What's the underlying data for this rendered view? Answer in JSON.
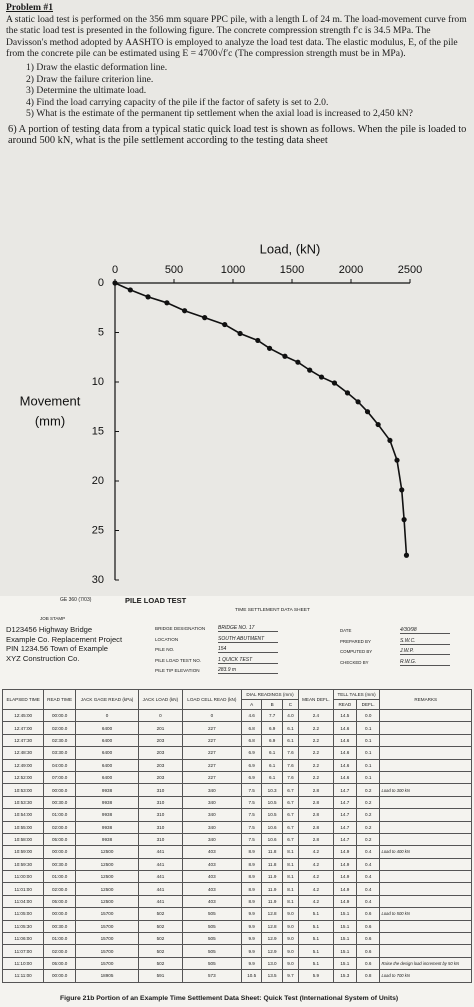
{
  "problem": {
    "title": "Problem #1",
    "body": "A static load test is performed on the 356 mm square PPC pile, with a length L of 24 m. The load-movement curve from the static load test is presented in the following figure. The concrete compression strength f′c is 34.5 MPa. The Davisson's method adopted by AASHTO is employed to analyze the load test data. The elastic modulus, E, of the pile from the concrete pile can be estimated using E = 4700√f′c (The compression strength must be in MPa).",
    "items": [
      "1) Draw the elastic deformation line.",
      "2) Draw the failure criterion line.",
      "3) Determine the ultimate load.",
      "4) Find the load carrying capacity of the pile if the factor of safety is set to 2.0.",
      "5) What is the estimate of the permanent tip settlement when the axial load is increased to 2,450 kN?"
    ],
    "question6": "6) A portion of testing data from a typical static quick load test is shown as follows. When the pile is loaded to around 500 kN, what is the pile settlement according to the testing data sheet"
  },
  "chart_data": {
    "type": "line",
    "title": "Load, (kN)",
    "y_label": [
      "Movement",
      "(mm)"
    ],
    "x": [
      0,
      130,
      280,
      440,
      590,
      760,
      930,
      1060,
      1210,
      1310,
      1440,
      1550,
      1650,
      1750,
      1860,
      1970,
      2060,
      2140,
      2230,
      2330,
      2390,
      2430,
      2450,
      2470
    ],
    "values": [
      0,
      0.7,
      1.4,
      2.0,
      2.8,
      3.5,
      4.2,
      5.1,
      5.8,
      6.6,
      7.4,
      8.0,
      8.8,
      9.5,
      10.1,
      11.1,
      12.0,
      13.0,
      14.3,
      15.9,
      17.9,
      20.9,
      23.9,
      27.5
    ],
    "color": "#111111",
    "x_axis_position": "top",
    "xlim": [
      0,
      2500
    ],
    "xticks": [
      0,
      500,
      1000,
      1500,
      2000,
      2500
    ],
    "ylim": [
      30,
      0
    ],
    "yticks": [
      0,
      5,
      10,
      15,
      20,
      25,
      30
    ]
  },
  "datasheet": {
    "form": "GE 360 (7/03)",
    "title": "PILE LOAD TEST",
    "subtitle": "TIME SETTLEMENT DATA SHEET",
    "job_stamp": "JOB STAMP",
    "stamp": [
      "D123456   Highway Bridge",
      "Example Co. Replacement Project",
      "PIN 1234.56 Town of Example",
      "XYZ Construction Co."
    ],
    "fields": [
      [
        "BRIDGE DESIGNATION",
        "BRIDGE NO. 17"
      ],
      [
        "LOCATION",
        "SOUTH ABUTMENT"
      ],
      [
        "PILE NO.",
        "154"
      ],
      [
        "PILE LOAD TEST NO.",
        "1  QUICK TEST"
      ],
      [
        "PILE TIP ELEVATION",
        "283.9 m"
      ]
    ],
    "signoff": [
      [
        "DATE",
        "4/30/98"
      ],
      [
        "PREPARED BY",
        "S.W.C."
      ],
      [
        "COMPUTED BY",
        "J.W.P."
      ],
      [
        "CHECKED BY",
        "R.W.G."
      ]
    ],
    "header": [
      "ELAPSED TIME",
      "READ TIME",
      "JACK GAGE READ (kPa)",
      "JACK LOAD (kN)",
      "LOAD CELL READ (kN)",
      "DIAL READINGS (mm)",
      "MEAN DEFL.",
      "TELL TALES (mm)",
      "REMARKS"
    ],
    "subheader": [
      "A",
      "B",
      "C",
      "READ",
      "DEFL."
    ],
    "rows": [
      [
        "12:45:00",
        "00:00.0",
        "0",
        "0",
        "0",
        "4.6",
        "7.7",
        "4.0",
        "2.4",
        "14.5",
        "0.0",
        ""
      ],
      [
        "12:47:00",
        "02:00.0",
        "6400",
        "201",
        "227",
        "6.8",
        "6.9",
        "6.1",
        "2.2",
        "14.6",
        "0.1",
        ""
      ],
      [
        "12:47:30",
        "02:30.0",
        "6400",
        "203",
        "227",
        "6.8",
        "6.9",
        "6.1",
        "2.2",
        "14.6",
        "0.1",
        ""
      ],
      [
        "12:48:30",
        "03:30.0",
        "6400",
        "203",
        "227",
        "6.9",
        "6.1",
        "7.6",
        "2.2",
        "14.6",
        "0.1",
        ""
      ],
      [
        "12:49:00",
        "04:00.0",
        "6400",
        "203",
        "227",
        "6.9",
        "6.1",
        "7.6",
        "2.2",
        "14.6",
        "0.1",
        ""
      ],
      [
        "12:52:00",
        "07:00.0",
        "6400",
        "203",
        "227",
        "6.9",
        "6.1",
        "7.6",
        "2.2",
        "14.6",
        "0.1",
        ""
      ],
      [
        "10:53:00",
        "00:00.0",
        "9938",
        "310",
        "340",
        "7.5",
        "10.3",
        "6.7",
        "2.8",
        "14.7",
        "0.2",
        "Load to 300 kN"
      ],
      [
        "10:53:30",
        "00:30.0",
        "9938",
        "310",
        "340",
        "7.5",
        "10.5",
        "6.7",
        "2.8",
        "14.7",
        "0.2",
        ""
      ],
      [
        "10:54:00",
        "01:00.0",
        "9938",
        "310",
        "340",
        "7.5",
        "10.5",
        "6.7",
        "2.8",
        "14.7",
        "0.2",
        ""
      ],
      [
        "10:55:00",
        "02:00.0",
        "9938",
        "310",
        "340",
        "7.5",
        "10.6",
        "6.7",
        "2.8",
        "14.7",
        "0.2",
        ""
      ],
      [
        "10:58:00",
        "05:00.0",
        "9938",
        "310",
        "340",
        "7.5",
        "10.6",
        "6.7",
        "2.8",
        "14.7",
        "0.2",
        ""
      ],
      [
        "10:59:00",
        "00:00.0",
        "12500",
        "441",
        "403",
        "8.9",
        "11.8",
        "8.1",
        "4.2",
        "14.9",
        "0.4",
        "Load to 400 kN"
      ],
      [
        "10:59:30",
        "00:30.0",
        "12500",
        "441",
        "403",
        "8.9",
        "11.8",
        "8.1",
        "4.2",
        "14.9",
        "0.4",
        ""
      ],
      [
        "11:00:00",
        "01:00.0",
        "12500",
        "441",
        "403",
        "8.9",
        "11.9",
        "8.1",
        "4.2",
        "14.9",
        "0.4",
        ""
      ],
      [
        "11:01:00",
        "02:00.0",
        "12500",
        "441",
        "403",
        "8.9",
        "11.9",
        "8.1",
        "4.2",
        "14.9",
        "0.4",
        ""
      ],
      [
        "11:04:00",
        "05:00.0",
        "12500",
        "441",
        "403",
        "8.9",
        "11.9",
        "8.1",
        "4.2",
        "14.9",
        "0.4",
        ""
      ],
      [
        "11:05:00",
        "00:00.0",
        "15700",
        "502",
        "505",
        "9.9",
        "12.8",
        "9.0",
        "5.1",
        "15.1",
        "0.6",
        "Load to 500 kN"
      ],
      [
        "11:05:30",
        "00:30.0",
        "15700",
        "502",
        "505",
        "9.9",
        "12.8",
        "9.0",
        "5.1",
        "15.1",
        "0.6",
        ""
      ],
      [
        "11:06:00",
        "01:00.0",
        "15700",
        "502",
        "505",
        "9.9",
        "12.9",
        "9.0",
        "5.1",
        "15.1",
        "0.6",
        ""
      ],
      [
        "11:07:00",
        "02:00.0",
        "15700",
        "502",
        "505",
        "9.9",
        "12.9",
        "9.0",
        "5.1",
        "15.1",
        "0.6",
        ""
      ],
      [
        "11:10:00",
        "05:00.0",
        "15700",
        "502",
        "505",
        "9.9",
        "13.0",
        "9.0",
        "5.1",
        "15.1",
        "0.6",
        "Raise the design load increment by 50 kN"
      ],
      [
        "11:11:00",
        "00:00.0",
        "18905",
        "591",
        "573",
        "10.5",
        "13.5",
        "9.7",
        "5.9",
        "15.3",
        "0.8",
        "Load to 700 kN"
      ]
    ],
    "caption": "Figure 21b Portion of an Example Time Settlement Data Sheet: Quick Test (International System of Units)"
  }
}
